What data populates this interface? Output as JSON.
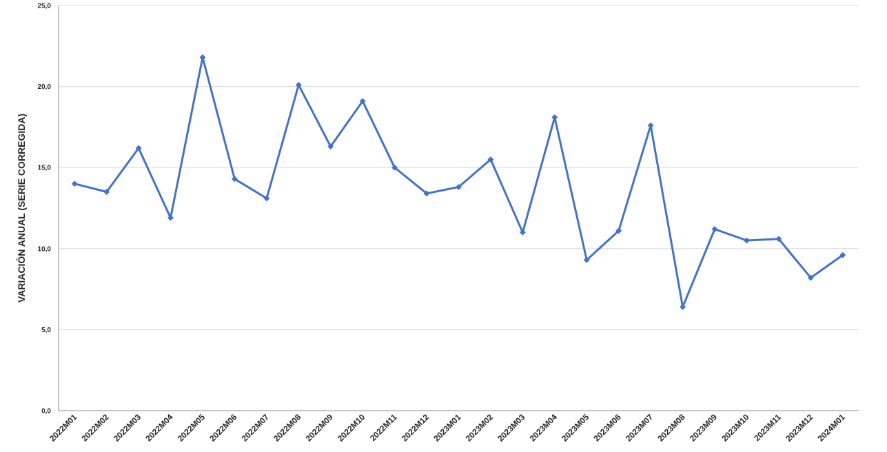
{
  "chart_data": {
    "type": "line",
    "title": "",
    "xlabel": "",
    "ylabel": "VARIACIÓN ANUAL (SERIE CORREGIDA)",
    "ylim": [
      0,
      25
    ],
    "yticks": [
      "0,0",
      "5,0",
      "10,0",
      "15,0",
      "20,0",
      "25,0"
    ],
    "ytick_values": [
      0,
      5,
      10,
      15,
      20,
      25
    ],
    "grid": true,
    "legend": "none",
    "series_color": "#4472C4",
    "marker": "diamond",
    "categories": [
      "2022M01",
      "2022M02",
      "2022M03",
      "2022M04",
      "2022M05",
      "2022M06",
      "2022M07",
      "2022M08",
      "2022M09",
      "2022M10",
      "2022M11",
      "2022M12",
      "2023M01",
      "2023M02",
      "2023M03",
      "2023M04",
      "2023M05",
      "2023M06",
      "2023M07",
      "2023M08",
      "2023M09",
      "2023M10",
      "2023M11",
      "2023M12",
      "2024M01"
    ],
    "series": [
      {
        "values": [
          14.0,
          13.5,
          16.2,
          11.9,
          21.8,
          14.3,
          13.1,
          20.1,
          16.3,
          19.1,
          15.0,
          13.4,
          13.8,
          15.5,
          11.0,
          18.1,
          9.3,
          11.1,
          17.6,
          6.4,
          11.2,
          10.5,
          10.6,
          8.2,
          9.6
        ]
      }
    ]
  }
}
